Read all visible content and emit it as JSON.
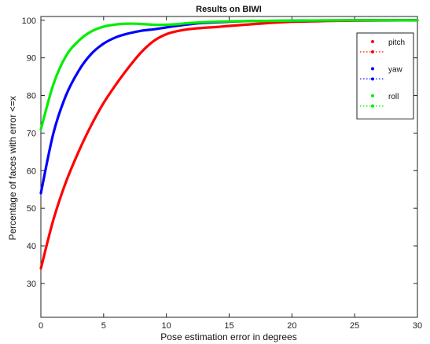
{
  "chart_data": {
    "type": "line",
    "title": "Results on BIWI",
    "xlabel": "Pose estimation error in degrees",
    "ylabel": "Percentage of faces with error <=x",
    "xlim": [
      0,
      30
    ],
    "ylim": [
      21,
      101
    ],
    "xticks": [
      0,
      5,
      10,
      15,
      20,
      25,
      30
    ],
    "yticks": [
      30,
      40,
      50,
      60,
      70,
      80,
      90,
      100
    ],
    "grid": false,
    "legend_position": "top-right",
    "series": [
      {
        "name": "pitch",
        "color": "#ff0000",
        "x": [
          0,
          1,
          2,
          3,
          4,
          5,
          6,
          7,
          8,
          9,
          10,
          11,
          12,
          13,
          14,
          15,
          17,
          20,
          23,
          25,
          30
        ],
        "y": [
          34,
          47,
          57,
          65,
          72,
          78,
          83,
          87.5,
          91.5,
          94.5,
          96.3,
          97.2,
          97.7,
          98,
          98.2,
          98.5,
          99,
          99.6,
          99.8,
          99.9,
          100
        ]
      },
      {
        "name": "yaw",
        "color": "#0000ff",
        "x": [
          0,
          1,
          2,
          3,
          4,
          5,
          6,
          7,
          8,
          9,
          10,
          11,
          12,
          13,
          15,
          17,
          20,
          25,
          30
        ],
        "y": [
          54,
          70,
          80,
          86.5,
          91,
          93.8,
          95.5,
          96.5,
          97.2,
          97.6,
          98.1,
          98.6,
          99,
          99.3,
          99.6,
          99.8,
          99.9,
          100,
          100
        ]
      },
      {
        "name": "roll",
        "color": "#00ee00",
        "x": [
          0,
          1,
          2,
          3,
          4,
          5,
          6,
          7,
          8,
          9,
          10,
          11,
          12,
          15,
          20,
          25,
          30
        ],
        "y": [
          71,
          83,
          90.5,
          94.5,
          97,
          98.3,
          98.9,
          99.1,
          99,
          98.8,
          98.8,
          99,
          99.3,
          99.7,
          99.9,
          100,
          100
        ]
      }
    ]
  }
}
